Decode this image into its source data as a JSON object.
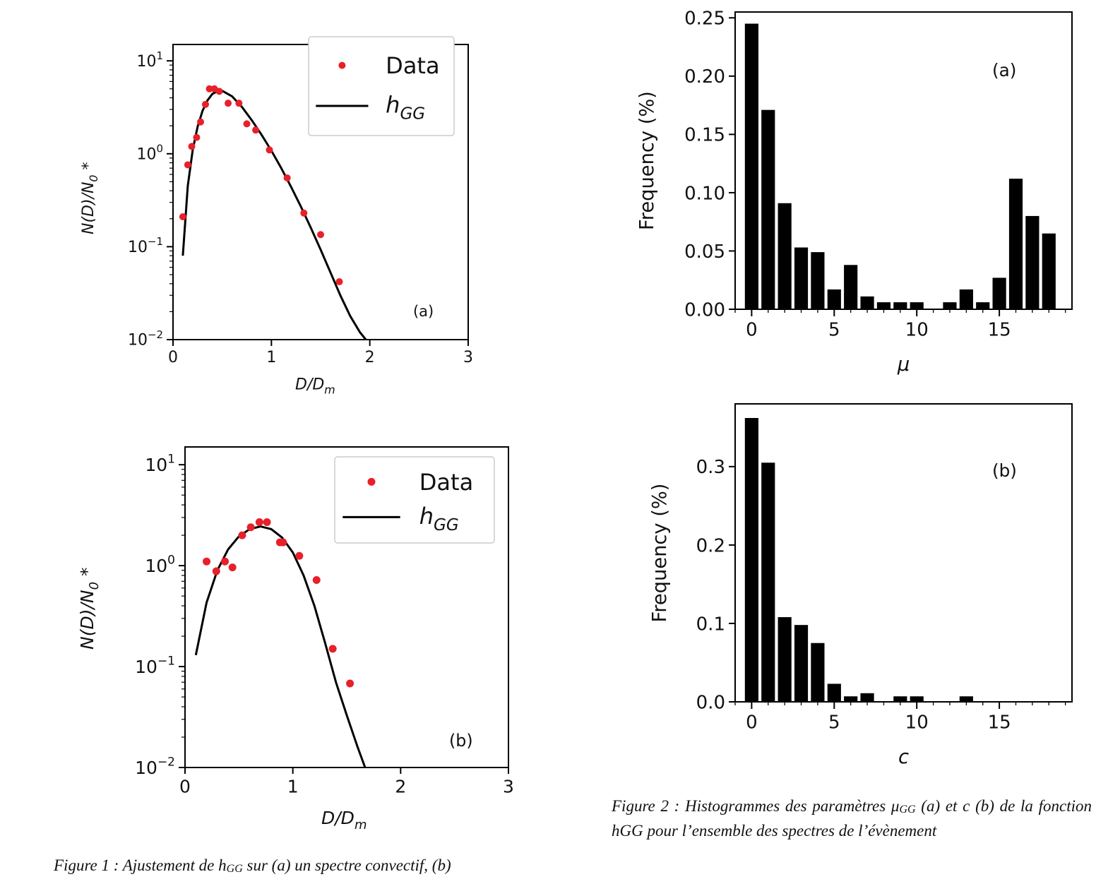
{
  "chart_data": [
    {
      "id": "fig1a",
      "type": "scatter",
      "panel_label": "(a)",
      "xlabel": "D/Dm",
      "ylabel": "N(D)/N0 *",
      "xlim": [
        0,
        3
      ],
      "ylim": [
        0.01,
        15
      ],
      "yscale": "log",
      "xticks": [
        "0",
        "1",
        "2",
        "3"
      ],
      "legend": {
        "position": "top-right",
        "data_label": "Data",
        "fit_label": "hGG"
      },
      "series": [
        {
          "name": "Data",
          "kind": "points",
          "color": "#e8202a",
          "x": [
            0.1,
            0.15,
            0.19,
            0.24,
            0.28,
            0.33,
            0.37,
            0.42,
            0.47,
            0.56,
            0.67,
            0.75,
            0.84,
            0.98,
            1.16,
            1.33,
            1.5,
            1.69
          ],
          "y": [
            0.21,
            0.76,
            1.2,
            1.5,
            2.2,
            3.4,
            5.0,
            5.0,
            4.7,
            3.5,
            3.5,
            2.1,
            1.8,
            1.1,
            0.55,
            0.23,
            0.135,
            0.042
          ]
        },
        {
          "name": "hGG",
          "kind": "line",
          "color": "#000000",
          "x": [
            0.1,
            0.15,
            0.2,
            0.25,
            0.3,
            0.35,
            0.4,
            0.45,
            0.5,
            0.6,
            0.7,
            0.8,
            0.9,
            1.0,
            1.1,
            1.2,
            1.3,
            1.4,
            1.5,
            1.6,
            1.7,
            1.8,
            1.9,
            1.96
          ],
          "y": [
            0.08,
            0.45,
            1.1,
            1.95,
            2.9,
            3.75,
            4.4,
            4.7,
            4.75,
            4.15,
            3.2,
            2.3,
            1.6,
            1.08,
            0.7,
            0.44,
            0.27,
            0.16,
            0.093,
            0.053,
            0.03,
            0.018,
            0.012,
            0.01
          ]
        }
      ]
    },
    {
      "id": "fig1b",
      "type": "scatter",
      "panel_label": "(b)",
      "xlabel": "D/Dm",
      "ylabel": "N(D)/N0 *",
      "xlim": [
        0,
        3
      ],
      "ylim": [
        0.01,
        15
      ],
      "yscale": "log",
      "xticks": [
        "0",
        "1",
        "2",
        "3"
      ],
      "legend": {
        "position": "top-right",
        "data_label": "Data",
        "fit_label": "hGG"
      },
      "series": [
        {
          "name": "Data",
          "kind": "points",
          "color": "#e8202a",
          "x": [
            0.2,
            0.29,
            0.37,
            0.44,
            0.53,
            0.61,
            0.69,
            0.76,
            0.88,
            0.91,
            1.06,
            1.22,
            1.37,
            1.53
          ],
          "y": [
            1.1,
            0.88,
            1.1,
            0.96,
            2.0,
            2.4,
            2.7,
            2.7,
            1.7,
            1.7,
            1.25,
            0.72,
            0.15,
            0.068
          ]
        },
        {
          "name": "hGG",
          "kind": "line",
          "color": "#000000",
          "x": [
            0.1,
            0.2,
            0.3,
            0.4,
            0.5,
            0.6,
            0.7,
            0.8,
            0.9,
            1.0,
            1.1,
            1.2,
            1.3,
            1.4,
            1.5,
            1.6,
            1.67
          ],
          "y": [
            0.13,
            0.43,
            0.9,
            1.45,
            1.95,
            2.3,
            2.45,
            2.3,
            1.9,
            1.35,
            0.8,
            0.4,
            0.17,
            0.07,
            0.033,
            0.016,
            0.01
          ]
        }
      ]
    },
    {
      "id": "fig2a",
      "type": "bar",
      "panel_label": "(a)",
      "xlabel": "μ",
      "ylabel": "Frequency (%)",
      "xlim": [
        -1,
        19.4
      ],
      "ylim": [
        0,
        0.255
      ],
      "yticks": [
        "0.00",
        "0.05",
        "0.10",
        "0.15",
        "0.20",
        "0.25"
      ],
      "xticks": [
        "0",
        "5",
        "10",
        "15"
      ],
      "categories": [
        0,
        1,
        2,
        3,
        4,
        5,
        6,
        7,
        8,
        9,
        10,
        11,
        12,
        13,
        14,
        15,
        16,
        17,
        18
      ],
      "values": [
        0.245,
        0.171,
        0.091,
        0.053,
        0.049,
        0.017,
        0.038,
        0.011,
        0.006,
        0.006,
        0.006,
        0.0,
        0.006,
        0.017,
        0.006,
        0.027,
        0.112,
        0.08,
        0.065
      ]
    },
    {
      "id": "fig2b",
      "type": "bar",
      "panel_label": "(b)",
      "xlabel": "c",
      "ylabel": "Frequency (%)",
      "xlim": [
        -1,
        19.4
      ],
      "ylim": [
        0,
        0.38
      ],
      "yticks": [
        "0.0",
        "0.1",
        "0.2",
        "0.3"
      ],
      "xticks": [
        "0",
        "5",
        "10",
        "15"
      ],
      "categories": [
        0,
        1,
        2,
        3,
        4,
        5,
        6,
        7,
        8,
        9,
        10,
        11,
        12,
        13,
        14,
        15,
        16,
        17,
        18
      ],
      "values": [
        0.362,
        0.305,
        0.108,
        0.098,
        0.075,
        0.023,
        0.007,
        0.011,
        0.0,
        0.007,
        0.007,
        0.0,
        0.0,
        0.007,
        0.0,
        0.0,
        0.0,
        0.0,
        0.0
      ]
    }
  ],
  "captions": {
    "fig1_pre": "Figure 1 : Ajustement de h",
    "fig1_sub": "GG",
    "fig1_post": " sur (a) un spectre convectif, (b)",
    "fig2_pre": "Figure 2 : Histogrammes des paramètres μ",
    "fig2_sub": "GG",
    "fig2_post": " (a) et c (b) de la fonction hGG pour l’ensemble des spectres de l’évènement"
  }
}
